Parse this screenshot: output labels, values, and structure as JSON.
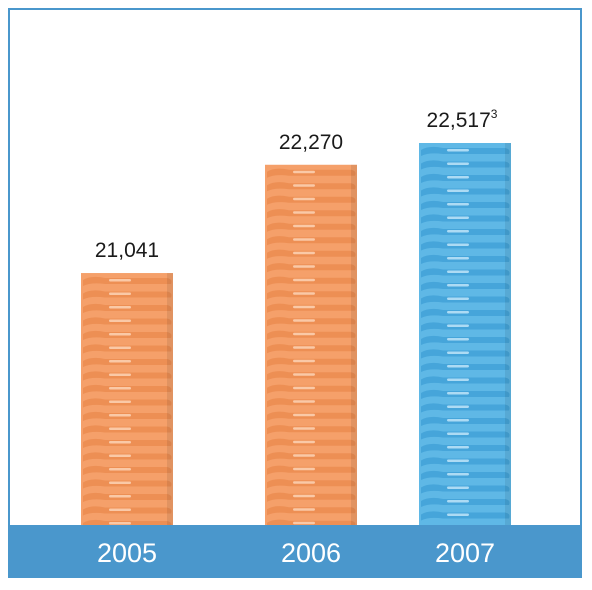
{
  "chart_data": {
    "type": "bar",
    "categories": [
      "2005",
      "2006",
      "2007"
    ],
    "values": [
      21041,
      22270,
      22517
    ],
    "value_labels": [
      "21,041",
      "22,270",
      "22,517"
    ],
    "value_notes": [
      "",
      "",
      "3"
    ],
    "bar_colors": [
      "#f5a06a",
      "#f5a06a",
      "#5fb8e6"
    ],
    "bar_rib_colors": [
      "#e98a4e",
      "#e98a4e",
      "#3d9fd6"
    ],
    "bar_highlight_colors": [
      "#fcd3b6",
      "#fcd3b6",
      "#bfe4f8"
    ],
    "axis_band_color": "#4a97cc",
    "frame_color": "#4a97cc",
    "title": "",
    "xlabel": "",
    "ylabel": ""
  }
}
